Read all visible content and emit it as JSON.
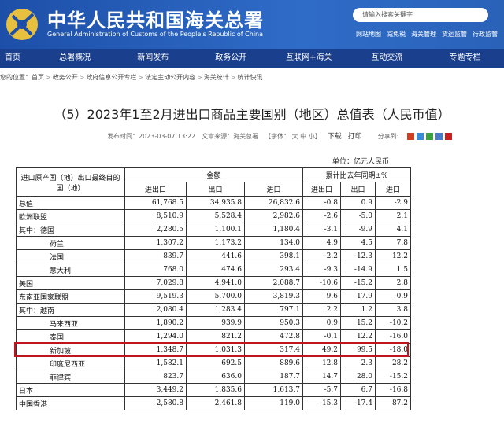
{
  "header": {
    "title": "中华人民共和国海关总署",
    "subtitle": "General Administration of Customs of the People's Republic of China",
    "search_placeholder": "请输入搜索关键字",
    "links": [
      "网站地图",
      "减免税",
      "海关管理",
      "货运监管",
      "行政监管"
    ]
  },
  "nav": [
    "首页",
    "总署概况",
    "新闻发布",
    "政务公开",
    "互联网+海关",
    "互动交流",
    "专题专栏"
  ],
  "breadcrumb": {
    "label": "您的位置：",
    "items": [
      "首页",
      "政务公开",
      "政府信息公开专栏",
      "法定主动公开内容",
      "海关统计",
      "统计快讯"
    ]
  },
  "article": {
    "title": "（5）2023年1至2月进出口商品主要国别（地区）总值表（人民币值）",
    "published": "发布时间：2023-03-07 13:22",
    "source": "文章来源：海关总署",
    "font_size": "【字体： 大  中  小】",
    "download": "下载",
    "print": "打印",
    "share": "分享到:",
    "unit": "单位：亿元人民币"
  },
  "table": {
    "corner": "进口原产国（地）出口最终目的国（地）",
    "group1": "金额",
    "group2": "累计比去年同期±%",
    "subheaders": [
      "进出口",
      "出口",
      "进口",
      "进出口",
      "出口",
      "进口"
    ],
    "rows": [
      [
        "总值",
        "61,768.5",
        "34,935.8",
        "26,832.6",
        "-0.8",
        "0.9",
        "-2.9"
      ],
      [
        "欧洲联盟",
        "8,510.9",
        "5,528.4",
        "2,982.6",
        "-2.6",
        "-5.0",
        "2.1"
      ],
      [
        "其中：德国",
        "2,280.5",
        "1,100.1",
        "1,180.4",
        "-3.1",
        "-9.9",
        "4.1"
      ],
      [
        "荷兰",
        "1,307.2",
        "1,173.2",
        "134.0",
        "4.9",
        "4.5",
        "7.8"
      ],
      [
        "法国",
        "839.7",
        "441.6",
        "398.1",
        "-2.2",
        "-12.3",
        "12.2"
      ],
      [
        "意大利",
        "768.0",
        "474.6",
        "293.4",
        "-9.3",
        "-14.9",
        "1.5"
      ],
      [
        "美国",
        "7,029.8",
        "4,941.0",
        "2,088.7",
        "-10.6",
        "-15.2",
        "2.8"
      ],
      [
        "东南亚国家联盟",
        "9,519.3",
        "5,700.0",
        "3,819.3",
        "9.6",
        "17.9",
        "-0.9"
      ],
      [
        "其中：越南",
        "2,080.4",
        "1,283.4",
        "797.1",
        "2.2",
        "1.2",
        "3.8"
      ],
      [
        "马来西亚",
        "1,890.2",
        "939.9",
        "950.3",
        "0.9",
        "15.2",
        "-10.2"
      ],
      [
        "泰国",
        "1,294.0",
        "821.2",
        "472.8",
        "-0.1",
        "12.2",
        "-16.0"
      ],
      [
        "新加坡",
        "1,348.7",
        "1,031.3",
        "317.4",
        "49.2",
        "99.5",
        "-18.0"
      ],
      [
        "印度尼西亚",
        "1,582.1",
        "692.5",
        "889.6",
        "12.8",
        "-2.3",
        "28.2"
      ],
      [
        "菲律宾",
        "823.7",
        "636.0",
        "187.7",
        "14.7",
        "28.0",
        "-15.2"
      ],
      [
        "日本",
        "3,449.2",
        "1,835.6",
        "1,613.7",
        "-5.7",
        "6.7",
        "-16.8"
      ],
      [
        "中国香港",
        "2,580.8",
        "2,461.8",
        "119.0",
        "-15.3",
        "-17.4",
        "87.2"
      ]
    ]
  }
}
